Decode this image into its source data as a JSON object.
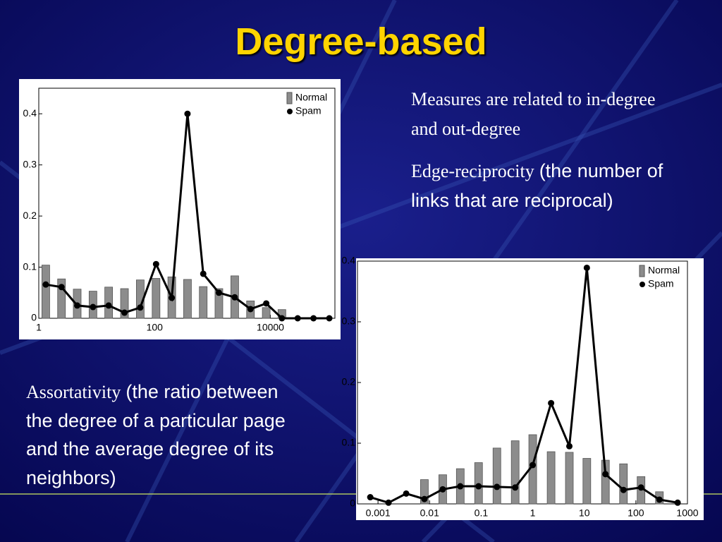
{
  "slide": {
    "title": "Degree-based",
    "text_blocks": [
      {
        "text": "Measures are related to in-degree and out-degree"
      },
      {
        "term": "Edge-reciprocity",
        "detail": "(the number of links that are reciprocal)"
      },
      {
        "term": "Assortativity",
        "detail": "(the ratio between the degree of a particular page and the average degree of its neighbors)"
      }
    ]
  },
  "chart_data": [
    {
      "type": "combo",
      "xscale": "log",
      "legend": "upper right",
      "x": [
        1.32,
        2.47,
        4.61,
        8.63,
        16.1,
        30.2,
        56.5,
        106,
        198,
        370,
        692,
        1290,
        2420,
        4530,
        8470,
        15800,
        29600,
        55500,
        104000
      ],
      "xlim": [
        1,
        130000
      ],
      "xticks": [
        1,
        100,
        10000
      ],
      "ylim": [
        0,
        0.45
      ],
      "yticks": [
        0,
        0.1,
        0.2,
        0.3,
        0.4
      ],
      "series": [
        {
          "name": "Normal",
          "kind": "bar",
          "color": "#8c8c8c",
          "values": [
            0.104,
            0.077,
            0.057,
            0.053,
            0.061,
            0.058,
            0.075,
            0.078,
            0.081,
            0.076,
            0.062,
            0.058,
            0.083,
            0.034,
            0.021,
            0.017,
            0,
            0,
            0
          ]
        },
        {
          "name": "Spam",
          "kind": "line",
          "color": "#000000",
          "values": [
            0.066,
            0.061,
            0.025,
            0.022,
            0.025,
            0.011,
            0.021,
            0.106,
            0.04,
            0.4,
            0.087,
            0.05,
            0.041,
            0.018,
            0.029,
            0,
            0,
            0,
            0
          ]
        }
      ]
    },
    {
      "type": "combo",
      "xscale": "log",
      "legend": "upper right",
      "x": [
        0.000708,
        0.0016,
        0.00352,
        0.00794,
        0.018,
        0.0394,
        0.0891,
        0.202,
        0.457,
        1.0,
        2.27,
        5.13,
        11.2,
        25.7,
        57.5,
        126,
        286,
        646
      ],
      "xlim": [
        0.0004,
        1000
      ],
      "xticks": [
        0.001,
        0.01,
        0.1,
        1,
        10,
        100,
        1000
      ],
      "ylim": [
        0,
        0.4
      ],
      "yticks": [
        0,
        0.1,
        0.2,
        0.3,
        0.4
      ],
      "series": [
        {
          "name": "Normal",
          "kind": "bar",
          "color": "#8c8c8c",
          "values": [
            0,
            0,
            0,
            0.04,
            0.048,
            0.058,
            0.068,
            0.092,
            0.104,
            0.114,
            0.086,
            0.085,
            0.075,
            0.072,
            0.066,
            0.045,
            0.02,
            0
          ]
        },
        {
          "name": "Spam",
          "kind": "line",
          "color": "#000000",
          "values": [
            0.011,
            0.002,
            0.017,
            0.008,
            0.024,
            0.029,
            0.029,
            0.028,
            0.027,
            0.064,
            0.166,
            0.095,
            0.389,
            0.049,
            0.023,
            0.027,
            0.007,
            0.002
          ]
        }
      ]
    }
  ]
}
